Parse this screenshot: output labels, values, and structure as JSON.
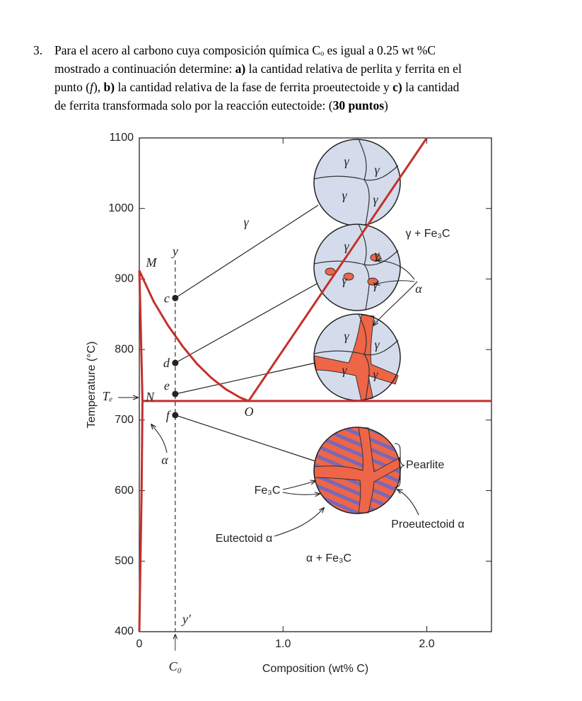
{
  "question": {
    "number": "3.",
    "lines": [
      [
        "Para el acero al carbono cuya composición química Cₒ es igual a 0.25 wt %C"
      ],
      [
        "mostrado a continuación determine: ",
        "a)",
        " la cantidad relativa de perlita y ferrita en el"
      ],
      [
        "punto (",
        "f",
        "), ",
        "b)",
        " la cantidad relativa de la fase de ferrita proeutectoide y ",
        "c)",
        " la cantidad"
      ],
      [
        "de ferrita transformada solo por la reacción eutectoide: (",
        "30 puntos",
        ")"
      ]
    ]
  },
  "chart_data": {
    "type": "phase-diagram",
    "xlabel": "Composition (wt% C)",
    "ylabel": "Temperature (°C)",
    "xlim": [
      0,
      2.45
    ],
    "ylim": [
      400,
      1100
    ],
    "xticks": [
      0,
      {
        "value": 1,
        "label": "1.0"
      },
      {
        "value": 2,
        "label": "2.0"
      }
    ],
    "yticks": [
      400,
      500,
      600,
      700,
      800,
      900,
      1000,
      1100
    ],
    "color": "#c4302b",
    "boundaries": [
      {
        "x": [
          0.76,
          2.0
        ],
        "y": [
          727,
          1100
        ]
      },
      {
        "x": [
          0,
          0.1,
          0.2,
          0.3,
          0.4,
          0.5,
          0.6,
          0.7,
          0.76
        ],
        "y": [
          912,
          868,
          834,
          805,
          780,
          760,
          744,
          732,
          727
        ]
      },
      {
        "x": [
          0,
          0.008,
          0.016,
          0.022
        ],
        "y": [
          912,
          850,
          780,
          727
        ]
      },
      {
        "x": [
          0.022,
          2.45
        ],
        "y": [
          727,
          727
        ]
      },
      {
        "x": [
          0.022,
          0.016,
          0.008,
          0
        ],
        "y": [
          727,
          600,
          500,
          400
        ]
      }
    ],
    "composition": {
      "label": "C₀",
      "x": 0.25,
      "top_label": "y",
      "bottom_label": "y′"
    },
    "points": [
      {
        "label": "c",
        "y": 873
      },
      {
        "label": "d",
        "y": 781
      },
      {
        "label": "e",
        "y": 737
      },
      {
        "label": "f",
        "y": 707
      }
    ],
    "annotations": [
      "γ",
      "γ + Fe₃C",
      "M",
      "N",
      "O",
      "Tₑ",
      "α",
      "α",
      "Pearlite",
      "Fe₃C",
      "Eutectoid α",
      "Proeutectoid α",
      "α + Fe₃C"
    ],
    "micro_labels": [
      [
        "γ",
        "γ",
        "γ",
        "γ"
      ],
      [
        "γ",
        "γ",
        "γ",
        "γ"
      ],
      [
        "γ",
        "γ",
        "γ",
        "γ"
      ]
    ]
  }
}
